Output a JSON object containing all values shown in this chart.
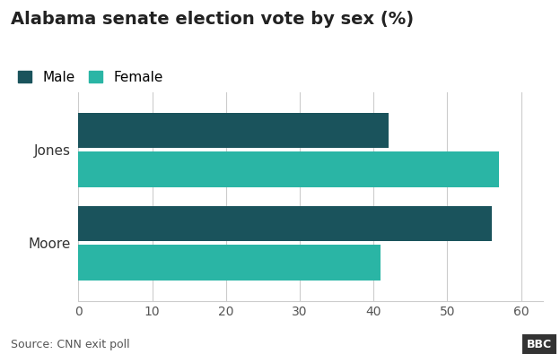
{
  "title": "Alabama senate election vote by sex (%)",
  "candidates": [
    "Moore",
    "Jones"
  ],
  "male_values": [
    56,
    42
  ],
  "female_values": [
    41,
    57
  ],
  "male_color": "#1a535c",
  "female_color": "#2ab5a5",
  "xlim": [
    0,
    63
  ],
  "xticks": [
    0,
    10,
    20,
    30,
    40,
    50,
    60
  ],
  "source": "Source: CNN exit poll",
  "bbc_text": "BBC",
  "legend_male": "Male",
  "legend_female": "Female",
  "background_color": "#ffffff",
  "title_fontsize": 14,
  "label_fontsize": 11,
  "tick_fontsize": 10,
  "source_fontsize": 9
}
